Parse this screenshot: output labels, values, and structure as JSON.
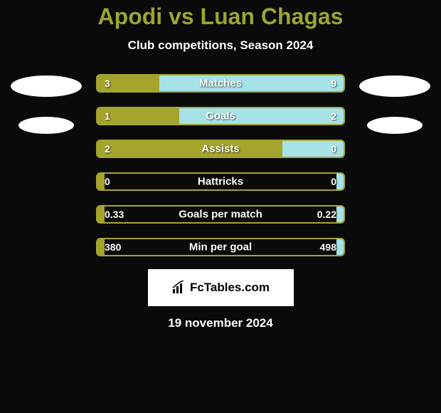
{
  "background_color": "#0a0a0a",
  "title": {
    "text": "Apodi vs Luan Chagas",
    "color": "#9aa62f",
    "fontsize": 32
  },
  "subtitle": {
    "text": "Club competitions, Season 2024",
    "fontsize": 17
  },
  "colors": {
    "left_bar": "#a5a52e",
    "right_bar": "#a6e3e9",
    "bar_border": "#a5a52e",
    "ellipse": "#ffffff"
  },
  "bars": [
    {
      "label": "Matches",
      "left_val": "3",
      "right_val": "9",
      "left_pct": 25,
      "right_pct": 75
    },
    {
      "label": "Goals",
      "left_val": "1",
      "right_val": "2",
      "left_pct": 33.3,
      "right_pct": 66.7
    },
    {
      "label": "Assists",
      "left_val": "2",
      "right_val": "0",
      "left_pct": 75,
      "right_pct": 25
    },
    {
      "label": "Hattricks",
      "left_val": "0",
      "right_val": "0",
      "left_pct": 3,
      "right_pct": 3
    },
    {
      "label": "Goals per match",
      "left_val": "0.33",
      "right_val": "0.22",
      "left_pct": 3,
      "right_pct": 3
    },
    {
      "label": "Min per goal",
      "left_val": "380",
      "right_val": "498",
      "left_pct": 3,
      "right_pct": 3
    }
  ],
  "logo": {
    "text": "FcTables.com"
  },
  "date": {
    "text": "19 november 2024"
  }
}
